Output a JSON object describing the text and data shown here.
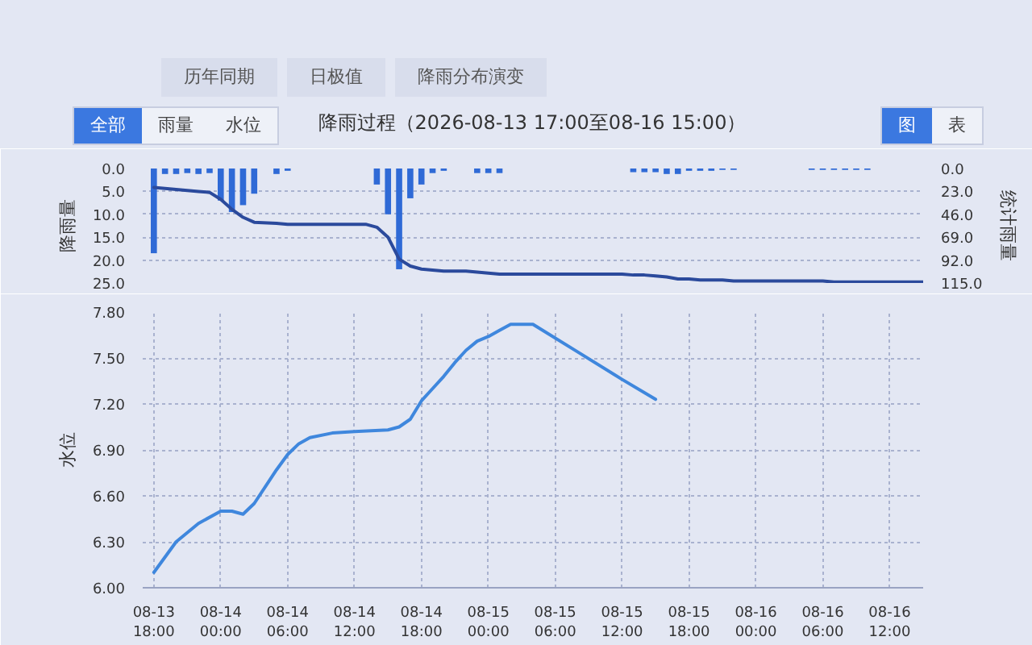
{
  "chart_data": [
    {
      "type": "bar",
      "title": "降雨过程（2026-08-13 17:00至08-16 15:00）",
      "annotations": [
        "历年同期",
        "日极值",
        "降雨分布演变",
        "全部",
        "雨量",
        "水位",
        "图",
        "表"
      ],
      "ylabel": "降雨量",
      "y2label": "统计雨量",
      "xlim": [
        "2026-08-13T17:00",
        "2026-08-16T15:00"
      ],
      "ylim": [
        25,
        0
      ],
      "yticks": [
        {
          "value": 0,
          "label": "0.0"
        },
        {
          "value": 5,
          "label": "5.0"
        },
        {
          "value": 10,
          "label": "10.0"
        },
        {
          "value": 15,
          "label": "15.0"
        },
        {
          "value": 20,
          "label": "20.0"
        },
        {
          "value": 25,
          "label": "25.0"
        }
      ],
      "y2lim": [
        115,
        0
      ],
      "y2ticks": [
        {
          "value": 0,
          "label": "0.0"
        },
        {
          "value": 23,
          "label": "23.0"
        },
        {
          "value": 46,
          "label": "46.0"
        },
        {
          "value": 69,
          "label": "69.0"
        },
        {
          "value": 92,
          "label": "92.0"
        },
        {
          "value": 115,
          "label": "115.0"
        }
      ],
      "grid": "y",
      "tick_labels": "y",
      "series": [
        {
          "type": "bar",
          "color": "#2f6ad6",
          "x": [
            "2026-08-13T18:00",
            "2026-08-13T19:00",
            "2026-08-13T20:00",
            "2026-08-13T21:00",
            "2026-08-13T22:00",
            "2026-08-13T23:00",
            "2026-08-14T00:00",
            "2026-08-14T01:00",
            "2026-08-14T02:00",
            "2026-08-14T03:00",
            "2026-08-14T05:00",
            "2026-08-14T06:00",
            "2026-08-14T14:00",
            "2026-08-14T15:00",
            "2026-08-14T16:00",
            "2026-08-14T17:00",
            "2026-08-14T18:00",
            "2026-08-14T19:00",
            "2026-08-14T20:00",
            "2026-08-14T23:00",
            "2026-08-15T00:00",
            "2026-08-15T01:00",
            "2026-08-15T13:00",
            "2026-08-15T14:00",
            "2026-08-15T15:00",
            "2026-08-15T16:00",
            "2026-08-15T17:00",
            "2026-08-15T18:00",
            "2026-08-15T19:00",
            "2026-08-15T20:00",
            "2026-08-15T21:00",
            "2026-08-15T22:00",
            "2026-08-16T05:00",
            "2026-08-16T06:00",
            "2026-08-16T07:00",
            "2026-08-16T08:00",
            "2026-08-16T09:00",
            "2026-08-16T10:00"
          ],
          "values": [
            18.5,
            1.2,
            1.2,
            1.0,
            1.2,
            1.0,
            7.0,
            9.5,
            8.0,
            5.5,
            1.2,
            0.5,
            3.5,
            10.0,
            22.0,
            6.5,
            3.5,
            1.0,
            0.5,
            1.0,
            1.0,
            1.0,
            0.8,
            0.8,
            0.8,
            1.2,
            1.2,
            0.5,
            0.5,
            0.5,
            0.3,
            0.3,
            0.3,
            0.3,
            0.3,
            0.3,
            0.3,
            0.3
          ]
        },
        {
          "type": "line",
          "axis": "y2",
          "color": "#2b4a9c",
          "x": [
            "2026-08-13T18:00",
            "2026-08-13T19:00",
            "2026-08-13T20:00",
            "2026-08-13T21:00",
            "2026-08-13T22:00",
            "2026-08-13T23:00",
            "2026-08-14T00:00",
            "2026-08-14T01:00",
            "2026-08-14T02:00",
            "2026-08-14T03:00",
            "2026-08-14T05:00",
            "2026-08-14T06:00",
            "2026-08-14T13:00",
            "2026-08-14T14:00",
            "2026-08-14T15:00",
            "2026-08-14T16:00",
            "2026-08-14T17:00",
            "2026-08-14T18:00",
            "2026-08-14T19:00",
            "2026-08-14T20:00",
            "2026-08-14T22:00",
            "2026-08-14T23:00",
            "2026-08-15T00:00",
            "2026-08-15T01:00",
            "2026-08-15T12:00",
            "2026-08-15T13:00",
            "2026-08-15T14:00",
            "2026-08-15T15:00",
            "2026-08-15T16:00",
            "2026-08-15T17:00",
            "2026-08-15T18:00",
            "2026-08-15T19:00",
            "2026-08-15T20:00",
            "2026-08-15T21:00",
            "2026-08-15T22:00",
            "2026-08-16T04:00",
            "2026-08-16T05:00",
            "2026-08-16T06:00",
            "2026-08-16T07:00",
            "2026-08-16T08:00",
            "2026-08-16T09:00",
            "2026-08-16T10:00",
            "2026-08-16T15:00"
          ],
          "values": [
            19,
            20,
            21,
            22,
            23,
            24,
            31,
            41,
            49,
            54,
            55,
            56,
            56,
            59,
            69,
            91,
            98,
            101,
            102,
            103,
            103,
            104,
            105,
            106,
            106,
            107,
            107,
            108,
            109,
            111,
            111,
            112,
            112,
            112,
            113,
            113,
            113,
            113,
            114,
            114,
            114,
            114,
            114
          ]
        }
      ]
    },
    {
      "type": "line",
      "ylabel": "水位",
      "xlim": [
        "2026-08-13T17:00",
        "2026-08-16T15:00"
      ],
      "xticks": [
        {
          "value": "2026-08-13T18:00",
          "label": "08-13 18:00"
        },
        {
          "value": "2026-08-14T00:00",
          "label": "08-14 00:00"
        },
        {
          "value": "2026-08-14T06:00",
          "label": "08-14 06:00"
        },
        {
          "value": "2026-08-14T12:00",
          "label": "08-14 12:00"
        },
        {
          "value": "2026-08-14T18:00",
          "label": "08-14 18:00"
        },
        {
          "value": "2026-08-15T00:00",
          "label": "08-15 00:00"
        },
        {
          "value": "2026-08-15T06:00",
          "label": "08-15 06:00"
        },
        {
          "value": "2026-08-15T12:00",
          "label": "08-15 12:00"
        },
        {
          "value": "2026-08-15T18:00",
          "label": "08-15 18:00"
        },
        {
          "value": "2026-08-16T00:00",
          "label": "08-16 00:00"
        },
        {
          "value": "2026-08-16T06:00",
          "label": "08-16 06:00"
        },
        {
          "value": "2026-08-16T12:00",
          "label": "08-16 12:00"
        }
      ],
      "ylim": [
        6,
        7.8
      ],
      "yticks": [
        {
          "value": 6,
          "label": "6.00"
        },
        {
          "value": 6.3,
          "label": "6.30"
        },
        {
          "value": 6.6,
          "label": "6.60"
        },
        {
          "value": 6.9,
          "label": "6.90"
        },
        {
          "value": 7.2,
          "label": "7.20"
        },
        {
          "value": 7.5,
          "label": "7.50"
        },
        {
          "value": 7.8,
          "label": "7.80"
        }
      ],
      "grid": true,
      "series": [
        {
          "color": "#3f87dd",
          "x": [
            "2026-08-13T18:00",
            "2026-08-13T20:00",
            "2026-08-13T22:00",
            "2026-08-14T00:00",
            "2026-08-14T01:00",
            "2026-08-14T02:00",
            "2026-08-14T03:00",
            "2026-08-14T04:00",
            "2026-08-14T05:00",
            "2026-08-14T06:00",
            "2026-08-14T07:00",
            "2026-08-14T08:00",
            "2026-08-14T10:00",
            "2026-08-14T12:00",
            "2026-08-14T15:00",
            "2026-08-14T16:00",
            "2026-08-14T17:00",
            "2026-08-14T18:00",
            "2026-08-14T19:00",
            "2026-08-14T20:00",
            "2026-08-14T21:00",
            "2026-08-14T22:00",
            "2026-08-14T23:00",
            "2026-08-15T00:00",
            "2026-08-15T01:00",
            "2026-08-15T02:00",
            "2026-08-15T04:00",
            "2026-08-15T08:00",
            "2026-08-15T12:00",
            "2026-08-15T15:00"
          ],
          "values": [
            6.1,
            6.3,
            6.42,
            6.5,
            6.5,
            6.48,
            6.55,
            6.66,
            6.77,
            6.87,
            6.94,
            6.98,
            7.01,
            7.02,
            7.03,
            7.05,
            7.1,
            7.22,
            7.3,
            7.38,
            7.47,
            7.55,
            7.61,
            7.64,
            7.68,
            7.72,
            7.72,
            7.54,
            7.36,
            7.23
          ]
        }
      ]
    }
  ]
}
